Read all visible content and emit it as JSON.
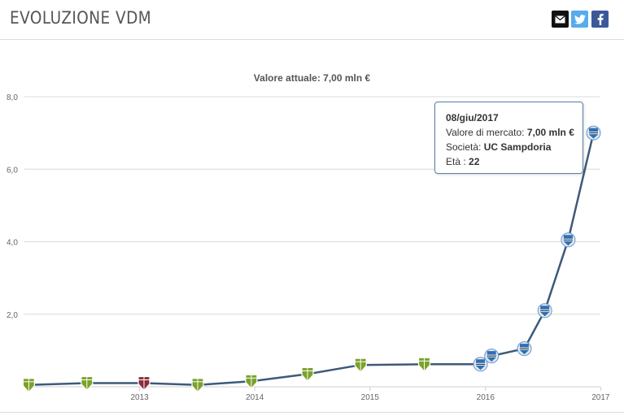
{
  "header": {
    "title": "EVOLUZIONE VDM",
    "share_icons": [
      "mail-icon",
      "twitter-icon",
      "facebook-icon"
    ]
  },
  "chart_data": {
    "type": "line",
    "title": "Valore attuale: 7,00 mln €",
    "ylim": [
      0,
      8
    ],
    "yticks": [
      "8,0",
      "6,0",
      "4,0",
      "2,0"
    ],
    "xticks": [
      "2013",
      "2014",
      "2015",
      "2016",
      "2017"
    ],
    "x_range": [
      "2012-07-01",
      "2017-06-30"
    ],
    "line_color": "#3d5a7a",
    "grid": true,
    "series": [
      {
        "x": [
          "2012-07-15",
          "2013-01-15",
          "2013-07-15",
          "2014-01-01",
          "2014-06-20",
          "2014-12-15",
          "2015-06-01",
          "2015-12-20",
          "2016-06-15",
          "2016-07-20",
          "2016-11-01",
          "2017-01-05",
          "2017-03-20",
          "2017-06-08"
        ],
        "values": [
          0.05,
          0.1,
          0.1,
          0.05,
          0.15,
          0.35,
          0.6,
          0.62,
          0.62,
          0.85,
          1.05,
          2.1,
          4.05,
          7.0
        ],
        "clubs": [
          "green",
          "green",
          "maroon",
          "green",
          "green",
          "green",
          "green",
          "green",
          "sampdoria",
          "sampdoria",
          "sampdoria",
          "sampdoria",
          "sampdoria",
          "sampdoria"
        ]
      }
    ],
    "club_colors": {
      "green": "#7aa22a",
      "maroon": "#8e2b3f",
      "sampdoria": "#2f6fb5"
    }
  },
  "tooltip": {
    "date": "08/giu/2017",
    "market_label": "Valore di mercato:",
    "market_value": "7,00 mln €",
    "club_label": "Società:",
    "club_value": "UC Sampdoria",
    "age_label": "Età :",
    "age_value": "22"
  }
}
